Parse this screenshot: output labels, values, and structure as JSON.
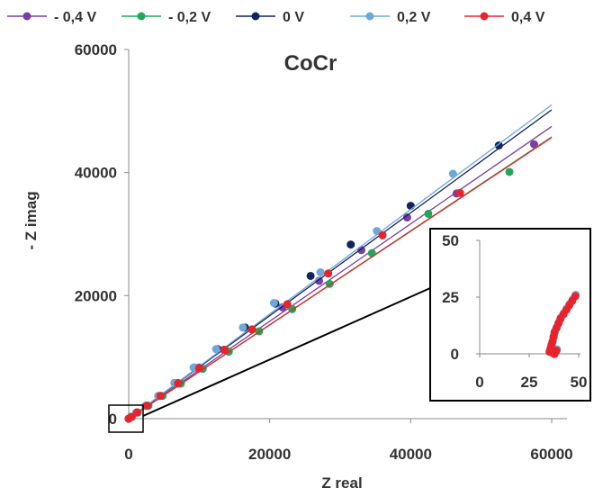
{
  "chart_data": {
    "type": "scatter",
    "title": "CoCr",
    "xlabel": "Z real",
    "ylabel": "- Z imag",
    "xlim": [
      0,
      60000
    ],
    "ylim": [
      0,
      60000
    ],
    "xticks": [
      "0",
      "20000",
      "40000",
      "60000"
    ],
    "yticks": [
      "0",
      "20000",
      "40000",
      "60000"
    ],
    "grid": false,
    "legend_position": "top",
    "series": [
      {
        "name": "- 0,4 V",
        "color": "#7b3fa0",
        "points": [
          [
            0,
            0
          ],
          [
            400,
            300
          ],
          [
            1200,
            1000
          ],
          [
            2600,
            2100
          ],
          [
            4500,
            3700
          ],
          [
            7000,
            5800
          ],
          [
            10000,
            8300
          ],
          [
            13500,
            11200
          ],
          [
            17500,
            14500
          ],
          [
            21800,
            18100
          ],
          [
            27000,
            22400
          ],
          [
            33000,
            27400
          ],
          [
            39500,
            32700
          ],
          [
            46500,
            36600
          ],
          [
            57500,
            44600
          ]
        ],
        "fit": [
          [
            0,
            0
          ],
          [
            60000,
            47500
          ]
        ]
      },
      {
        "name": "- 0,2 V",
        "color": "#1fa85a",
        "points": [
          [
            0,
            0
          ],
          [
            450,
            300
          ],
          [
            1300,
            1000
          ],
          [
            2800,
            2100
          ],
          [
            4800,
            3700
          ],
          [
            7400,
            5700
          ],
          [
            10500,
            8100
          ],
          [
            14200,
            10900
          ],
          [
            18500,
            14200
          ],
          [
            23200,
            17800
          ],
          [
            28500,
            21900
          ],
          [
            34500,
            26900
          ],
          [
            42500,
            33300
          ],
          [
            54000,
            40100
          ]
        ],
        "fit": [
          [
            0,
            0
          ],
          [
            60000,
            45800
          ]
        ]
      },
      {
        "name": "0 V",
        "color": "#13235e",
        "points": [
          [
            0,
            0
          ],
          [
            350,
            300
          ],
          [
            1100,
            1000
          ],
          [
            2400,
            2100
          ],
          [
            4200,
            3700
          ],
          [
            6500,
            5800
          ],
          [
            9300,
            8300
          ],
          [
            12600,
            11300
          ],
          [
            16500,
            14800
          ],
          [
            20800,
            18700
          ],
          [
            25800,
            23200
          ],
          [
            31500,
            28300
          ],
          [
            40000,
            34600
          ],
          [
            52500,
            44400
          ]
        ],
        "fit": [
          [
            0,
            0
          ],
          [
            60000,
            50200
          ]
        ]
      },
      {
        "name": "0,2 V",
        "color": "#6ea8d9",
        "points": [
          [
            0,
            0
          ],
          [
            350,
            300
          ],
          [
            1100,
            1000
          ],
          [
            2400,
            2100
          ],
          [
            4200,
            3700
          ],
          [
            6500,
            5800
          ],
          [
            9200,
            8300
          ],
          [
            12400,
            11300
          ],
          [
            16200,
            14800
          ],
          [
            20600,
            18800
          ],
          [
            27200,
            23800
          ],
          [
            35200,
            30500
          ],
          [
            46000,
            39800
          ]
        ],
        "fit": [
          [
            0,
            0
          ],
          [
            60000,
            51000
          ]
        ]
      },
      {
        "name": "0,4 V",
        "color": "#e8232b",
        "points": [
          [
            0,
            0
          ],
          [
            400,
            300
          ],
          [
            1200,
            1000
          ],
          [
            2600,
            2100
          ],
          [
            4500,
            3700
          ],
          [
            7000,
            5700
          ],
          [
            10000,
            8200
          ],
          [
            13600,
            11200
          ],
          [
            17500,
            14500
          ],
          [
            22500,
            18600
          ],
          [
            28300,
            23600
          ],
          [
            36000,
            29800
          ],
          [
            47000,
            36700
          ]
        ],
        "fit": [
          [
            0,
            0
          ],
          [
            60000,
            45700
          ]
        ]
      }
    ],
    "inset": {
      "xlim": [
        0,
        50
      ],
      "ylim": [
        0,
        50
      ],
      "xticks": [
        "0",
        "25",
        "50"
      ],
      "yticks": [
        "0",
        "25",
        "50"
      ],
      "points": [
        [
          35.5,
          1.5
        ],
        [
          36,
          3
        ],
        [
          36.5,
          4.5
        ],
        [
          37,
          6
        ],
        [
          37.5,
          8
        ],
        [
          38,
          10
        ],
        [
          39,
          12
        ],
        [
          40,
          14
        ],
        [
          41,
          16
        ],
        [
          42.5,
          18
        ],
        [
          44,
          20
        ],
        [
          45.5,
          22
        ],
        [
          47,
          24
        ],
        [
          48.5,
          26
        ],
        [
          38,
          0.5
        ],
        [
          37,
          1
        ],
        [
          39,
          2
        ]
      ]
    }
  }
}
